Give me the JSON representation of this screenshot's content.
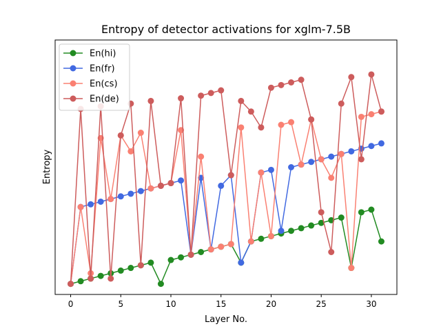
{
  "chart_data": {
    "type": "line",
    "title": "Entropy of detector activations for xglm-7.5B",
    "xlabel": "Layer No.",
    "ylabel": "Entropy",
    "xlim": [
      -1.55,
      32.55
    ],
    "ylim": [
      -4,
      92
    ],
    "x_ticks": [
      0,
      5,
      10,
      15,
      20,
      25,
      30
    ],
    "y_ticks_visible": false,
    "grid": false,
    "legend_position": "top-left",
    "x": [
      0,
      1,
      2,
      3,
      4,
      5,
      6,
      7,
      8,
      9,
      10,
      11,
      12,
      13,
      14,
      15,
      16,
      17,
      18,
      19,
      20,
      21,
      22,
      23,
      24,
      25,
      26,
      27,
      28,
      29,
      30,
      31
    ],
    "series": [
      {
        "name": "En(hi)",
        "color": "#228b22",
        "values": [
          0,
          1,
          2,
          3,
          4,
          5,
          6,
          7,
          8,
          0,
          9,
          10,
          11,
          12,
          13,
          14,
          15,
          8,
          16,
          17,
          18,
          19,
          20,
          21,
          22,
          23,
          24,
          25,
          6,
          27,
          28,
          16
        ]
      },
      {
        "name": "En(fr)",
        "color": "#4169e1",
        "values": [
          0,
          29,
          30,
          31,
          32,
          33,
          34,
          35,
          36,
          37,
          38,
          39,
          11,
          40,
          13,
          37,
          41,
          8,
          16,
          42,
          43,
          20,
          44,
          45,
          46,
          47,
          48,
          49,
          50,
          51,
          52,
          53
        ]
      },
      {
        "name": "En(cs)",
        "color": "#fa8072",
        "values": [
          0,
          29,
          4,
          55,
          32,
          56,
          50,
          57,
          36,
          37,
          38,
          58,
          11,
          48,
          13,
          14,
          15,
          59,
          16,
          42,
          18,
          60,
          61,
          45,
          62,
          47,
          40,
          49,
          6,
          63,
          64,
          65
        ]
      },
      {
        "name": "En(de)",
        "color": "#cd5c5c",
        "values": [
          0,
          66,
          2,
          67,
          2,
          56,
          68,
          7,
          69,
          37,
          38,
          70,
          11,
          71,
          72,
          73,
          41,
          69,
          65,
          59,
          74,
          75,
          76,
          77,
          62,
          27,
          12,
          68,
          78,
          47,
          79,
          65
        ]
      }
    ]
  }
}
